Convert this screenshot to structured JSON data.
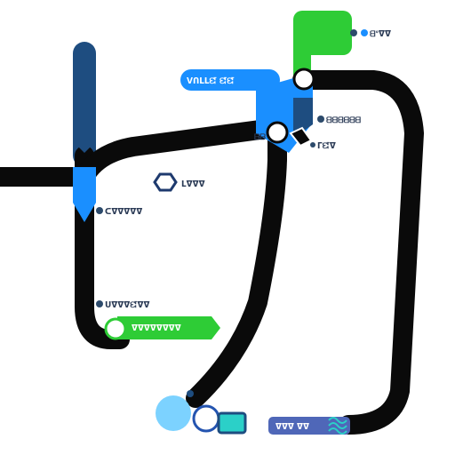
{
  "map": {
    "colors": {
      "route": "#0a0a0a",
      "navy": "#1e4d80",
      "blue": "#1a8fff",
      "green": "#2ecc36",
      "light_blue": "#7cd2ff",
      "teal": "#2bd0c8",
      "slate": "#4f67b8",
      "dot": "#2c4a6b",
      "text": "#2a3a55"
    },
    "labels": {
      "top_right": "ᗺᐤᐁᐁ",
      "blue_banner": "ᐯᑎᒪᒪᘿ ᘿᘿ",
      "mid_right": "ᗺᗺᗺᗺᗺᗺ",
      "mid_right_low": "ᒥᘿᐁ",
      "junction_small": "ᗷᗷ",
      "center": "ᒪᐁᐁᐁ",
      "left_mid": "ᑕᐁᐁᐁᐁᐁ",
      "left_low": "ᑌᐁᐁᐁᘿᐁᐁ",
      "green_banner": "ᐁᐁᐁᐁᐁᐁᐁᐁ",
      "bottom_tag": "ᐁᐁᐁ ᐁᐁ"
    }
  }
}
